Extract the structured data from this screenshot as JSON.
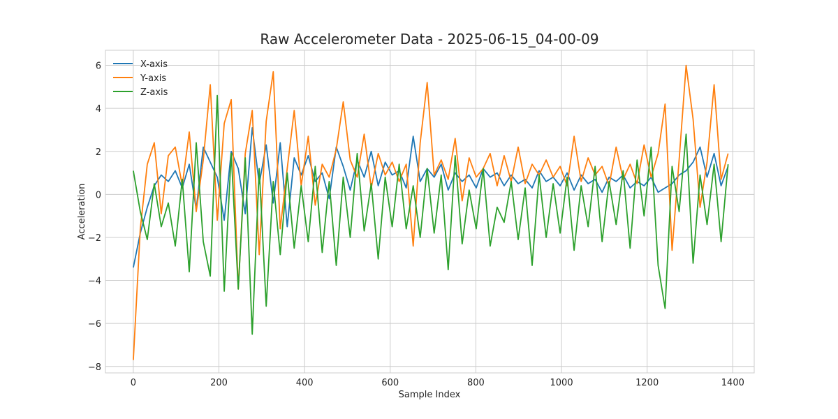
{
  "chart_data": {
    "type": "line",
    "title": "Raw Accelerometer Data - 2025-06-15_04-00-09",
    "xlabel": "Sample Index",
    "ylabel": "Acceleration",
    "xlim": [
      -65,
      1450
    ],
    "ylim": [
      -8.3,
      6.7
    ],
    "xticks": [
      0,
      200,
      400,
      600,
      800,
      1000,
      1200,
      1400
    ],
    "xtick_labels": [
      "0",
      "200",
      "400",
      "600",
      "800",
      "1000",
      "1200",
      "1400"
    ],
    "yticks": [
      -8,
      -6,
      -4,
      -2,
      0,
      2,
      4,
      6
    ],
    "ytick_labels": [
      "−8",
      "−6",
      "−4",
      "−2",
      "0",
      "2",
      "4",
      "6"
    ],
    "grid": true,
    "legend_position": "top-left",
    "num_samples": 1390,
    "series": [
      {
        "name": "X-axis",
        "color": "#1f77b4",
        "values": [
          -3.4,
          -1.8,
          -0.6,
          0.4,
          0.9,
          0.6,
          1.1,
          0.3,
          1.4,
          -0.7,
          2.2,
          1.5,
          0.8,
          -1.2,
          2.0,
          1.2,
          -0.9,
          3.1,
          0.5,
          2.3,
          -0.4,
          2.4,
          -1.5,
          1.7,
          0.9,
          1.8,
          0.6,
          1.0,
          -0.2,
          2.2,
          1.3,
          0.2,
          1.6,
          0.8,
          2.0,
          0.4,
          1.5,
          0.9,
          1.1,
          0.3,
          2.7,
          0.6,
          1.2,
          0.8,
          1.4,
          0.2,
          1.0,
          0.6,
          0.9,
          0.3,
          1.2,
          0.8,
          1.0,
          0.4,
          0.9,
          0.5,
          0.7,
          0.3,
          1.1,
          0.6,
          0.8,
          0.4,
          1.0,
          0.2,
          0.9,
          0.5,
          0.7,
          0.1,
          0.8,
          0.6,
          0.9,
          0.3,
          0.6,
          0.4,
          0.8,
          0.1,
          0.3,
          0.5,
          0.9,
          1.1,
          1.5,
          2.2,
          0.8,
          1.9,
          0.4,
          1.3
        ]
      },
      {
        "name": "Y-axis",
        "color": "#ff7f0e",
        "values": [
          -7.7,
          -1.6,
          1.4,
          2.4,
          -0.9,
          1.8,
          2.2,
          0.4,
          2.9,
          -0.8,
          1.6,
          5.1,
          -1.2,
          3.3,
          4.4,
          -4.4,
          1.9,
          3.9,
          -2.8,
          3.4,
          5.7,
          -1.6,
          1.2,
          3.9,
          0.4,
          2.7,
          -0.5,
          1.4,
          0.8,
          2.1,
          4.3,
          1.6,
          0.8,
          2.8,
          0.3,
          1.9,
          0.9,
          1.5,
          0.6,
          1.4,
          -2.4,
          2.4,
          5.2,
          0.9,
          1.6,
          0.7,
          2.6,
          -0.3,
          1.7,
          0.8,
          1.2,
          1.9,
          0.4,
          1.8,
          0.6,
          2.2,
          0.5,
          1.4,
          0.9,
          1.6,
          0.8,
          1.3,
          0.4,
          2.7,
          0.6,
          1.7,
          0.9,
          1.3,
          0.4,
          2.2,
          0.7,
          1.4,
          0.5,
          2.3,
          0.8,
          1.9,
          4.2,
          -2.6,
          1.6,
          6.0,
          3.5,
          -0.6,
          1.5,
          5.1,
          0.7,
          1.9
        ]
      },
      {
        "name": "Z-axis",
        "color": "#2ca02c",
        "values": [
          1.1,
          -0.8,
          -2.1,
          0.5,
          -1.5,
          -0.4,
          -2.4,
          0.7,
          -3.6,
          2.4,
          -2.2,
          -3.8,
          4.6,
          -4.5,
          1.9,
          -4.4,
          1.7,
          -6.5,
          1.2,
          -5.2,
          0.6,
          -2.8,
          1.0,
          -2.5,
          0.4,
          -2.2,
          1.3,
          -2.7,
          0.6,
          -3.3,
          0.8,
          -2.0,
          1.9,
          -1.7,
          0.5,
          -3.0,
          0.8,
          -1.5,
          1.4,
          -1.6,
          0.4,
          -2.0,
          1.2,
          -1.8,
          0.9,
          -3.5,
          1.8,
          -2.3,
          0.2,
          -1.6,
          1.2,
          -2.4,
          -0.6,
          -1.3,
          0.6,
          -2.1,
          0.3,
          -3.3,
          0.9,
          -2.0,
          0.5,
          -1.8,
          0.8,
          -2.6,
          0.4,
          -1.5,
          1.3,
          -2.2,
          0.6,
          -1.4,
          1.1,
          -2.5,
          1.6,
          -1.0,
          2.2,
          -3.3,
          -5.3,
          1.3,
          -0.8,
          2.8,
          -3.2,
          0.9,
          -1.4,
          1.4,
          -2.2,
          1.4
        ]
      }
    ]
  }
}
